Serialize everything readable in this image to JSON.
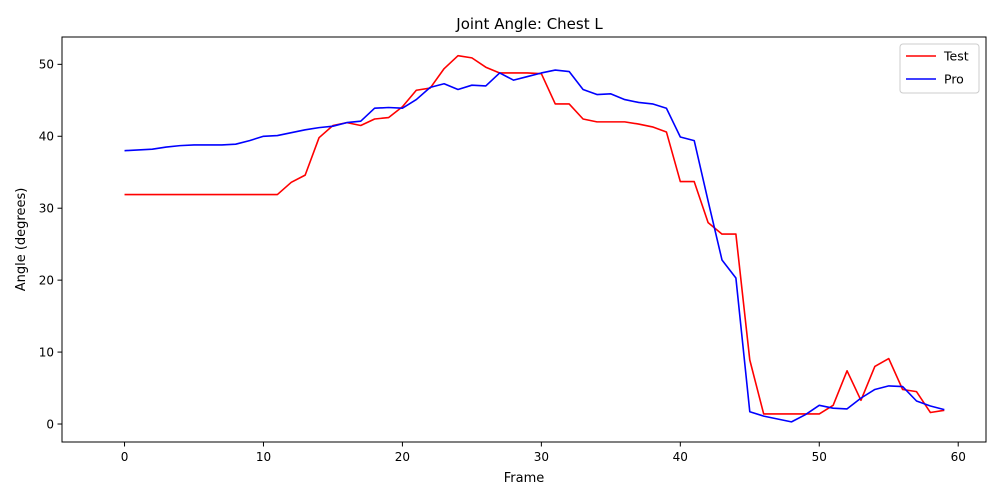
{
  "chart_data": {
    "type": "line",
    "title": "Joint Angle: Chest L",
    "xlabel": "Frame",
    "ylabel": "Angle (degrees)",
    "xlim": [
      -4.5,
      62
    ],
    "ylim": [
      -2.5,
      53.8
    ],
    "xticks": [
      0,
      10,
      20,
      30,
      40,
      50,
      60
    ],
    "yticks": [
      0,
      10,
      20,
      30,
      40,
      50
    ],
    "grid": false,
    "legend_position": "top-right",
    "x": [
      0,
      1,
      2,
      3,
      4,
      5,
      6,
      7,
      8,
      9,
      10,
      11,
      12,
      13,
      14,
      15,
      16,
      17,
      18,
      19,
      20,
      21,
      22,
      23,
      24,
      25,
      26,
      27,
      28,
      29,
      30,
      31,
      32,
      33,
      34,
      35,
      36,
      37,
      38,
      39,
      40,
      41,
      42,
      43,
      44,
      45,
      46,
      47,
      48,
      49,
      50,
      51,
      52,
      53,
      54,
      55,
      56,
      57,
      58,
      59
    ],
    "series": [
      {
        "name": "Test",
        "color": "#ff0000",
        "values": [
          31.9,
          31.9,
          31.9,
          31.9,
          31.9,
          31.9,
          31.9,
          31.9,
          31.9,
          31.9,
          31.9,
          31.9,
          33.6,
          34.6,
          39.8,
          41.5,
          41.9,
          41.5,
          42.4,
          42.6,
          44.1,
          46.4,
          46.7,
          49.4,
          51.2,
          50.9,
          49.6,
          48.8,
          48.8,
          48.8,
          48.7,
          44.5,
          44.5,
          42.4,
          42.0,
          42.0,
          42.0,
          41.7,
          41.3,
          40.6,
          33.7,
          33.7,
          28.0,
          26.4,
          26.4,
          8.9,
          1.4,
          1.4,
          1.4,
          1.4,
          1.4,
          2.6,
          7.4,
          3.3,
          8.0,
          9.1,
          4.8,
          4.5,
          1.6,
          1.9
        ]
      },
      {
        "name": "Pro",
        "color": "#0000ff",
        "values": [
          38.0,
          38.1,
          38.2,
          38.5,
          38.7,
          38.8,
          38.8,
          38.8,
          38.9,
          39.4,
          40.0,
          40.1,
          40.5,
          40.9,
          41.2,
          41.4,
          41.9,
          42.1,
          43.9,
          44.0,
          43.9,
          45.1,
          46.8,
          47.3,
          46.5,
          47.1,
          47.0,
          48.8,
          47.8,
          48.3,
          48.8,
          49.2,
          49.0,
          46.5,
          45.8,
          45.9,
          45.1,
          44.7,
          44.5,
          43.9,
          39.9,
          39.4,
          31.0,
          22.8,
          20.3,
          1.7,
          1.1,
          0.7,
          0.3,
          1.3,
          2.6,
          2.2,
          2.1,
          3.6,
          4.8,
          5.3,
          5.2,
          3.2,
          2.5,
          2.0
        ]
      }
    ]
  }
}
